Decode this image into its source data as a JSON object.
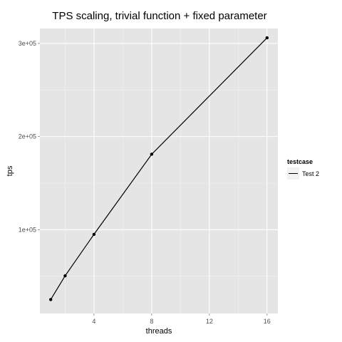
{
  "chart_data": {
    "type": "line",
    "title": "TPS scaling, trivial function + fixed parameter",
    "xlabel": "threads",
    "ylabel": "tps",
    "xlim": [
      0.25,
      16.75
    ],
    "ylim": [
      10000,
      316000
    ],
    "x_ticks": [
      4,
      8,
      12,
      16
    ],
    "x_tick_labels": [
      "4",
      "8",
      "12",
      "16"
    ],
    "y_ticks": [
      100000,
      200000,
      300000
    ],
    "y_tick_labels": [
      "1e+05",
      "2e+05",
      "3e+05"
    ],
    "grid": true,
    "legend": {
      "title": "testcase",
      "position": "right"
    },
    "series": [
      {
        "name": "Test 2",
        "color": "#000000",
        "x": [
          1,
          2,
          4,
          8,
          16
        ],
        "y": [
          25000,
          50500,
          95000,
          181000,
          306000
        ]
      }
    ]
  }
}
